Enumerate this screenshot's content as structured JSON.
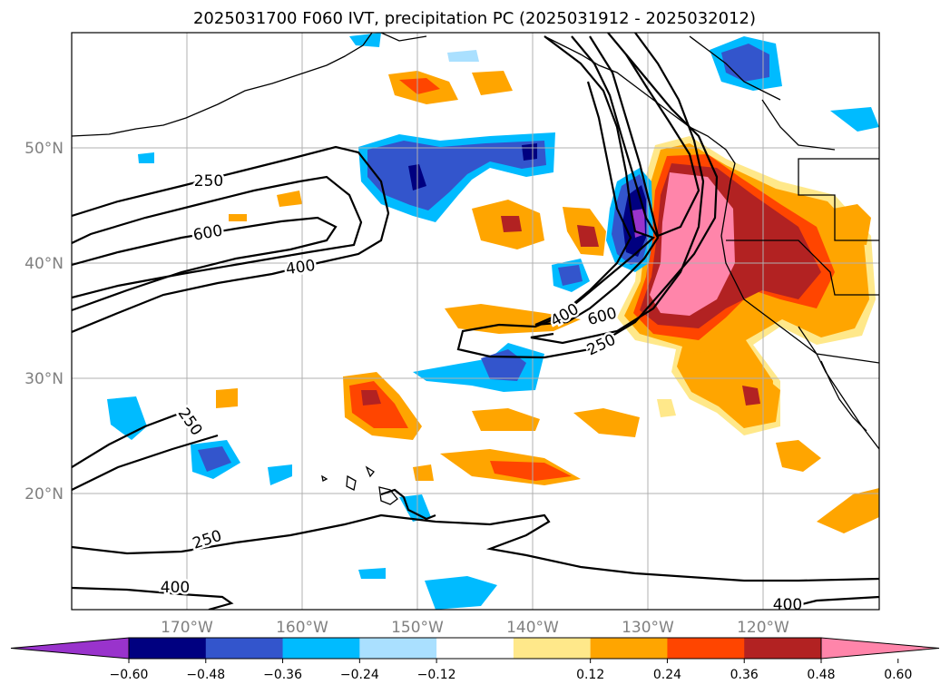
{
  "title": "2025031700 F060 IVT, precipitation PC (2025031912 - 2025032012)",
  "chart_data": {
    "type": "map",
    "projection": "lat-lon",
    "lon_ticks": [
      "170°W",
      "160°W",
      "150°W",
      "140°W",
      "130°W",
      "120°W"
    ],
    "lat_ticks": [
      "50°N",
      "40°N",
      "30°N",
      "20°N"
    ],
    "lon_range": [
      -180,
      -110
    ],
    "lat_range": [
      10,
      60
    ],
    "grid": true,
    "contour_labels": [
      {
        "text": "250"
      },
      {
        "text": "600"
      },
      {
        "text": "400"
      },
      {
        "text": "250"
      },
      {
        "text": "250"
      },
      {
        "text": "400"
      },
      {
        "text": "400"
      },
      {
        "text": "600"
      },
      {
        "text": "250"
      },
      {
        "text": "400"
      }
    ],
    "colorbar": {
      "ticks": [
        "−0.60",
        "−0.48",
        "−0.36",
        "−0.24",
        "−0.12",
        "0.12",
        "0.24",
        "0.36",
        "0.48",
        "0.60"
      ],
      "bins": [
        {
          "range": "< -0.60",
          "color": "#9933cc"
        },
        {
          "range": "-0.60 to -0.48",
          "color": "#000080"
        },
        {
          "range": "-0.48 to -0.36",
          "color": "#3355cc"
        },
        {
          "range": "-0.36 to -0.24",
          "color": "#00bbff"
        },
        {
          "range": "-0.24 to -0.12",
          "color": "#aae0ff"
        },
        {
          "range": "-0.12 to 0.12",
          "color": "#ffffff"
        },
        {
          "range": "0.12 to 0.24",
          "color": "#ffe88a"
        },
        {
          "range": "0.24 to 0.36",
          "color": "#ffa500"
        },
        {
          "range": "0.36 to 0.48",
          "color": "#ff4500"
        },
        {
          "range": "0.48 to 0.60",
          "color": "#b22222"
        },
        {
          "range": "> 0.60",
          "color": "#ff85aa"
        }
      ]
    }
  }
}
